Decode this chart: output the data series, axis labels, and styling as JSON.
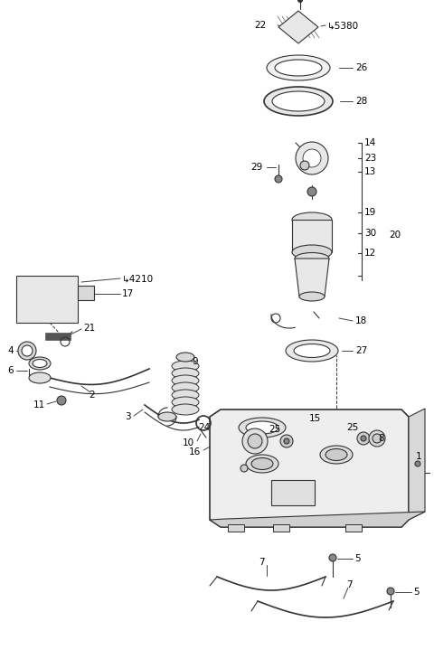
{
  "bg_color": "#ffffff",
  "line_color": "#333333",
  "label_color": "#000000",
  "fig_width": 4.8,
  "fig_height": 7.29,
  "dpi": 100,
  "label_fs": 7.5,
  "label_fs_sm": 7.0
}
